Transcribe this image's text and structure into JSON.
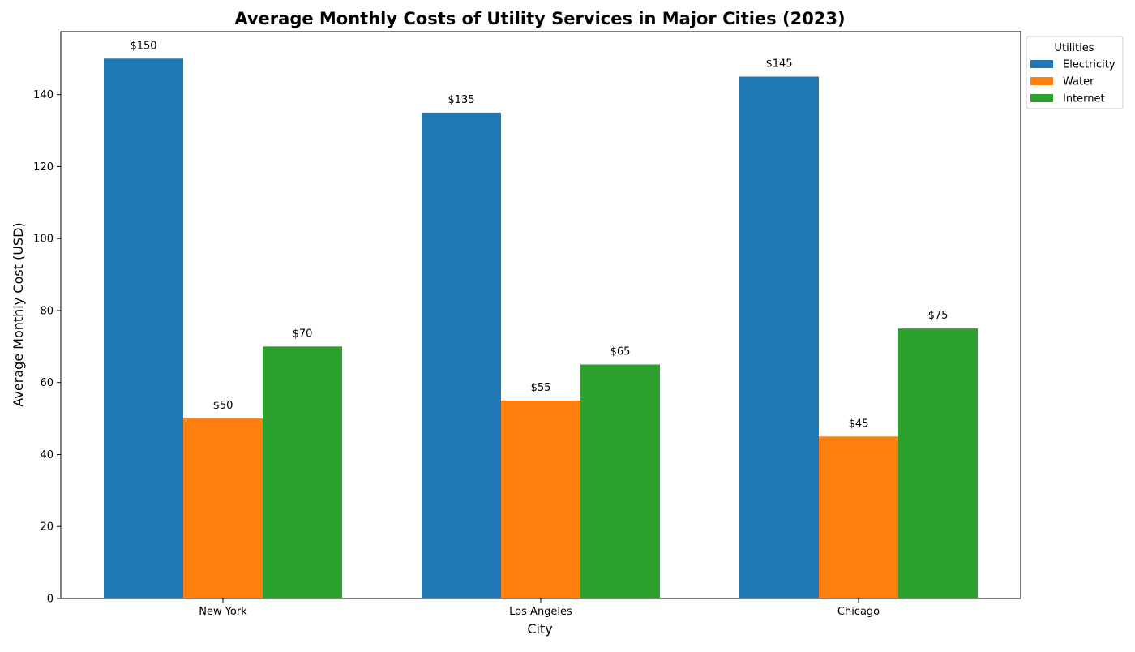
{
  "chart_data": {
    "type": "bar",
    "title": "Average Monthly Costs of Utility Services in Major Cities (2023)",
    "xlabel": "City",
    "ylabel": "Average Monthly Cost (USD)",
    "categories": [
      "New York",
      "Los Angeles",
      "Chicago"
    ],
    "series": [
      {
        "name": "Electricity",
        "color": "#1f77b4",
        "values": [
          150,
          135,
          145
        ]
      },
      {
        "name": "Water",
        "color": "#ff7f0e",
        "values": [
          50,
          55,
          45
        ]
      },
      {
        "name": "Internet",
        "color": "#2ca02c",
        "values": [
          70,
          65,
          75
        ]
      }
    ],
    "value_label_prefix": "$",
    "ylim": [
      0,
      157.5
    ],
    "yticks": [
      0,
      20,
      40,
      60,
      80,
      100,
      120,
      140
    ],
    "grid": false,
    "legend": {
      "title": "Utilities",
      "placement": "outside top-right"
    }
  }
}
